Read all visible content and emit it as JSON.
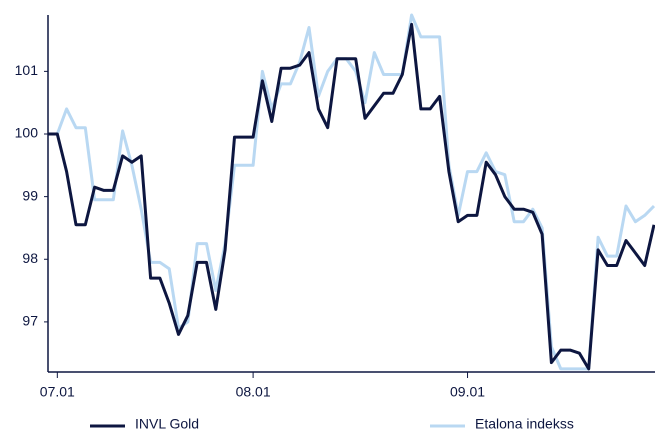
{
  "chart_data": {
    "type": "line",
    "categories": [
      null,
      "07.01",
      null,
      null,
      null,
      null,
      null,
      null,
      null,
      null,
      null,
      null,
      null,
      null,
      null,
      null,
      null,
      null,
      null,
      null,
      null,
      null,
      "08.01",
      null,
      null,
      null,
      null,
      null,
      null,
      null,
      null,
      null,
      null,
      null,
      null,
      null,
      null,
      null,
      null,
      null,
      null,
      null,
      null,
      null,
      null,
      "09.01",
      null,
      null,
      null,
      null,
      null,
      null,
      null,
      null,
      null,
      null,
      null,
      null,
      null,
      null,
      null,
      null,
      null,
      null,
      null,
      null
    ],
    "series": [
      {
        "name": "Etalona indekss",
        "color": "#b9d8f2",
        "values": [
          100,
          100,
          100.4,
          100.1,
          100.1,
          98.95,
          98.95,
          98.95,
          100.05,
          99.5,
          98.8,
          97.95,
          97.95,
          97.85,
          96.9,
          97.0,
          98.25,
          98.25,
          97.5,
          98.25,
          99.5,
          99.5,
          99.5,
          101.0,
          100.4,
          100.8,
          100.8,
          101.15,
          101.7,
          100.6,
          101.0,
          101.2,
          101.2,
          101.0,
          100.5,
          101.3,
          100.95,
          100.95,
          100.95,
          101.9,
          101.55,
          101.55,
          101.55,
          99.5,
          98.7,
          99.4,
          99.4,
          99.7,
          99.4,
          99.35,
          98.6,
          98.6,
          98.8,
          98.5,
          96.6,
          96.25,
          96.25,
          96.25,
          96.25,
          98.35,
          98.05,
          98.05,
          98.85,
          98.6,
          98.7,
          98.85
        ]
      },
      {
        "name": "INVL Gold",
        "color": "#0d1640",
        "values": [
          100,
          100,
          99.4,
          98.55,
          98.55,
          99.15,
          99.1,
          99.1,
          99.65,
          99.55,
          99.65,
          97.7,
          97.7,
          97.3,
          96.8,
          97.1,
          97.95,
          97.95,
          97.2,
          98.15,
          99.95,
          99.95,
          99.95,
          100.85,
          100.2,
          101.05,
          101.05,
          101.1,
          101.3,
          100.4,
          100.1,
          101.2,
          101.2,
          101.2,
          100.25,
          100.45,
          100.65,
          100.65,
          100.95,
          101.75,
          100.4,
          100.4,
          100.6,
          99.4,
          98.6,
          98.7,
          98.7,
          99.55,
          99.35,
          99.0,
          98.8,
          98.8,
          98.75,
          98.4,
          96.35,
          96.55,
          96.55,
          96.5,
          96.25,
          98.15,
          97.9,
          97.9,
          98.3,
          98.1,
          97.9,
          98.55
        ]
      }
    ],
    "ylim": [
      96.2,
      101.9
    ],
    "yticks": [
      97,
      98,
      99,
      100,
      101
    ],
    "grid": false
  }
}
